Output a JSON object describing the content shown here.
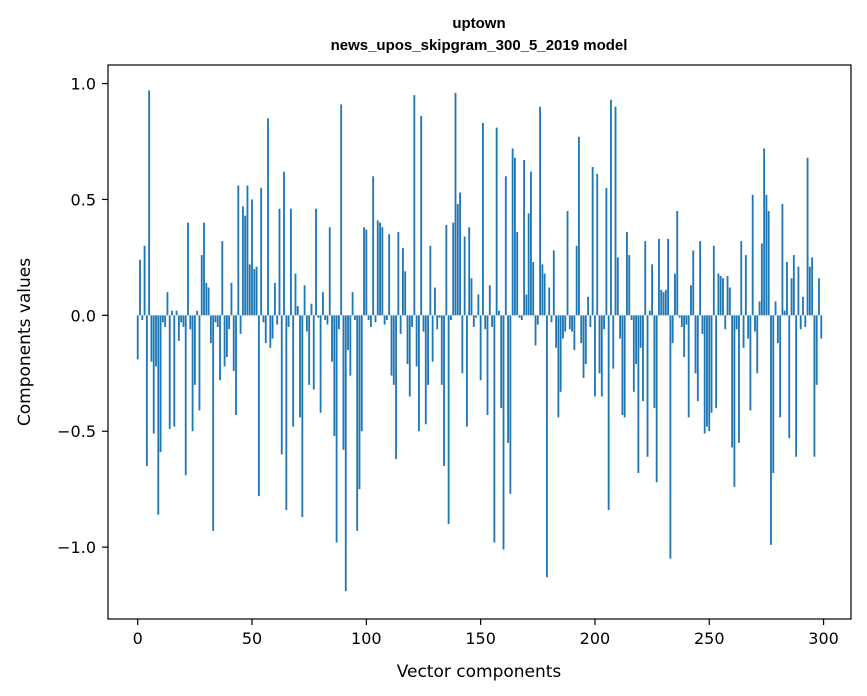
{
  "chart_data": {
    "type": "bar",
    "title": "uptown",
    "subtitle": "news_upos_skipgram_300_5_2019 model",
    "xlabel": "Vector components",
    "ylabel": "Components values",
    "xlim": [
      -13,
      312
    ],
    "ylim": [
      -1.31,
      1.08
    ],
    "xticks": [
      0,
      50,
      100,
      150,
      200,
      250,
      300
    ],
    "yticks": [
      1.0,
      0.5,
      0.0,
      -0.5,
      -1.0
    ],
    "ytick_labels": [
      "1.0",
      "0.5",
      "0.0",
      "−0.5",
      "−1.0"
    ],
    "grid": false,
    "bar_color": "#1f77b4",
    "x": [
      0,
      1,
      2,
      3,
      4,
      5,
      6,
      7,
      8,
      9,
      10,
      11,
      12,
      13,
      14,
      15,
      16,
      17,
      18,
      19,
      20,
      21,
      22,
      23,
      24,
      25,
      26,
      27,
      28,
      29,
      30,
      31,
      32,
      33,
      34,
      35,
      36,
      37,
      38,
      39,
      40,
      41,
      42,
      43,
      44,
      45,
      46,
      47,
      48,
      49,
      50,
      51,
      52,
      53,
      54,
      55,
      56,
      57,
      58,
      59,
      60,
      61,
      62,
      63,
      64,
      65,
      66,
      67,
      68,
      69,
      70,
      71,
      72,
      73,
      74,
      75,
      76,
      77,
      78,
      79,
      80,
      81,
      82,
      83,
      84,
      85,
      86,
      87,
      88,
      89,
      90,
      91,
      92,
      93,
      94,
      95,
      96,
      97,
      98,
      99,
      100,
      101,
      102,
      103,
      104,
      105,
      106,
      107,
      108,
      109,
      110,
      111,
      112,
      113,
      114,
      115,
      116,
      117,
      118,
      119,
      120,
      121,
      122,
      123,
      124,
      125,
      126,
      127,
      128,
      129,
      130,
      131,
      132,
      133,
      134,
      135,
      136,
      137,
      138,
      139,
      140,
      141,
      142,
      143,
      144,
      145,
      146,
      147,
      148,
      149,
      150,
      151,
      152,
      153,
      154,
      155,
      156,
      157,
      158,
      159,
      160,
      161,
      162,
      163,
      164,
      165,
      166,
      167,
      168,
      169,
      170,
      171,
      172,
      173,
      174,
      175,
      176,
      177,
      178,
      179,
      180,
      181,
      182,
      183,
      184,
      185,
      186,
      187,
      188,
      189,
      190,
      191,
      192,
      193,
      194,
      195,
      196,
      197,
      198,
      199,
      200,
      201,
      202,
      203,
      204,
      205,
      206,
      207,
      208,
      209,
      210,
      211,
      212,
      213,
      214,
      215,
      216,
      217,
      218,
      219,
      220,
      221,
      222,
      223,
      224,
      225,
      226,
      227,
      228,
      229,
      230,
      231,
      232,
      233,
      234,
      235,
      236,
      237,
      238,
      239,
      240,
      241,
      242,
      243,
      244,
      245,
      246,
      247,
      248,
      249,
      250,
      251,
      252,
      253,
      254,
      255,
      256,
      257,
      258,
      259,
      260,
      261,
      262,
      263,
      264,
      265,
      266,
      267,
      268,
      269,
      270,
      271,
      272,
      273,
      274,
      275,
      276,
      277,
      278,
      279,
      280,
      281,
      282,
      283,
      284,
      285,
      286,
      287,
      288,
      289,
      290,
      291,
      292,
      293,
      294,
      295,
      296,
      297,
      298,
      299
    ],
    "values": [
      -0.19,
      0.24,
      -0.02,
      0.3,
      -0.65,
      0.97,
      -0.2,
      -0.51,
      -0.22,
      -0.86,
      -0.59,
      -0.03,
      -0.05,
      0.1,
      -0.49,
      0.02,
      -0.48,
      0.02,
      -0.11,
      -0.03,
      -0.05,
      -0.69,
      0.4,
      -0.06,
      -0.5,
      -0.3,
      0.02,
      -0.41,
      0.26,
      0.4,
      0.14,
      0.12,
      -0.12,
      -0.93,
      -0.03,
      -0.05,
      -0.28,
      0.32,
      -0.22,
      -0.18,
      -0.06,
      0.14,
      -0.24,
      -0.43,
      0.56,
      -0.08,
      0.47,
      0.43,
      0.56,
      0.22,
      0.5,
      0.2,
      0.21,
      -0.78,
      0.55,
      -0.03,
      -0.12,
      0.85,
      -0.14,
      -0.1,
      0.14,
      -0.04,
      0.46,
      -0.6,
      0.62,
      -0.84,
      -0.05,
      0.46,
      -0.48,
      0.18,
      0.04,
      -0.44,
      -0.87,
      0.13,
      -0.07,
      -0.3,
      0.05,
      -0.32,
      0.46,
      -0.01,
      -0.42,
      0.1,
      -0.02,
      -0.04,
      0.38,
      -0.2,
      -0.52,
      -0.98,
      -0.06,
      0.91,
      -0.58,
      -1.19,
      -0.15,
      -0.26,
      0.1,
      -0.02,
      -0.93,
      -0.75,
      -0.5,
      0.38,
      0.37,
      -0.02,
      -0.05,
      0.6,
      -0.03,
      0.41,
      0.4,
      0.38,
      -0.04,
      -0.02,
      0.35,
      -0.26,
      -0.3,
      -0.62,
      0.36,
      -0.08,
      0.29,
      0.19,
      -0.21,
      -0.35,
      -0.05,
      0.95,
      -0.22,
      -0.5,
      0.86,
      -0.07,
      -0.47,
      -0.3,
      0.3,
      -0.2,
      0.12,
      -0.06,
      -0.01,
      -0.3,
      -0.65,
      0.39,
      -0.9,
      -0.02,
      0.4,
      0.96,
      0.48,
      0.53,
      -0.25,
      0.34,
      -0.48,
      0.38,
      0.16,
      -0.05,
      -0.01,
      0.09,
      -0.28,
      0.83,
      -0.06,
      -0.43,
      0.13,
      -0.05,
      -0.98,
      0.81,
      0.02,
      -0.4,
      -1.01,
      0.6,
      -0.55,
      -0.77,
      0.72,
      0.68,
      0.36,
      -0.01,
      -0.02,
      0.67,
      0.09,
      0.44,
      0.62,
      0.23,
      -0.13,
      -0.04,
      0.9,
      0.22,
      0.18,
      -1.13,
      0.12,
      -0.03,
      0.28,
      -0.14,
      -0.44,
      -0.33,
      -0.1,
      -0.07,
      0.45,
      -0.06,
      -0.07,
      -0.15,
      0.3,
      0.77,
      -0.12,
      -0.27,
      -0.21,
      0.08,
      -0.05,
      0.64,
      -0.35,
      0.61,
      -0.25,
      -0.35,
      -0.06,
      0.55,
      -0.84,
      0.93,
      -0.23,
      0.9,
      0.25,
      -0.1,
      -0.43,
      -0.44,
      0.36,
      0.26,
      -0.02,
      -0.33,
      -0.21,
      -0.68,
      -0.14,
      -0.37,
      0.32,
      -0.61,
      0.02,
      0.22,
      -0.4,
      -0.72,
      0.33,
      0.11,
      0.1,
      0.11,
      0.33,
      -1.05,
      -0.12,
      0.18,
      0.45,
      -0.01,
      -0.05,
      -0.18,
      -0.04,
      -0.44,
      0.13,
      0.28,
      -0.25,
      -0.37,
      0.32,
      -0.08,
      -0.51,
      -0.48,
      -0.5,
      -0.42,
      0.3,
      -0.4,
      0.18,
      0.17,
      0.16,
      -0.06,
      0.17,
      0.12,
      -0.57,
      -0.74,
      -0.06,
      -0.55,
      0.32,
      -0.14,
      0.26,
      -0.1,
      -0.41,
      0.52,
      -0.07,
      -0.25,
      0.06,
      0.31,
      0.72,
      0.52,
      0.45,
      -0.99,
      -0.68,
      0.06,
      -0.12,
      -0.44,
      0.48,
      0.02,
      0.23,
      -0.53,
      0.16,
      0.26,
      -0.61,
      0.21,
      -0.06,
      0.08,
      -0.05,
      0.68,
      0.21,
      0.25,
      -0.61,
      -0.3,
      0.16,
      -0.1
    ]
  }
}
